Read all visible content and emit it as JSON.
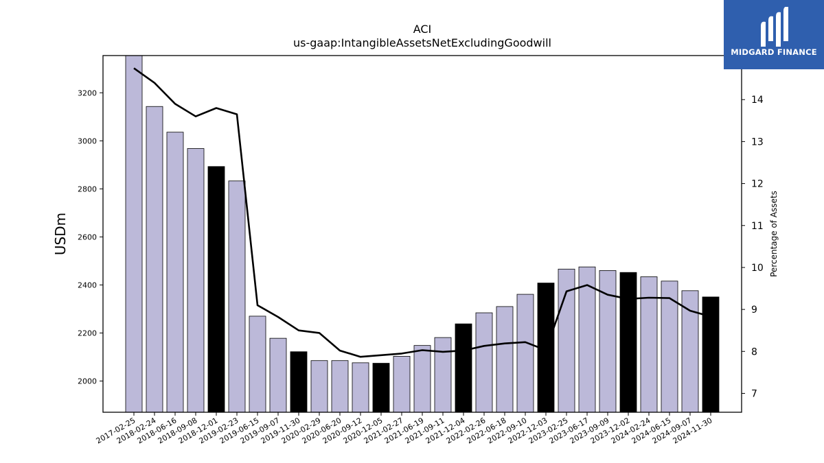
{
  "chart_data": {
    "type": "bar",
    "title": "ACI",
    "subtitle": "us-gaap:IntangibleAssetsNetExcludingGoodwill",
    "ylabel": "USDm",
    "y2label": "Percentage of Assets",
    "categories": [
      "2017-02-25",
      "2018-02-24",
      "2018-06-16",
      "2018-09-08",
      "2018-12-01",
      "2019-02-23",
      "2019-06-15",
      "2019-09-07",
      "2019-11-30",
      "2020-02-29",
      "2020-06-20",
      "2020-09-12",
      "2020-12-05",
      "2021-02-27",
      "2021-06-19",
      "2021-09-11",
      "2021-12-04",
      "2022-02-26",
      "2022-06-18",
      "2022-09-10",
      "2022-12-03",
      "2023-02-25",
      "2023-06-17",
      "2023-09-09",
      "2023-12-02",
      "2024-02-24",
      "2024-06-15",
      "2024-09-07",
      "2024-11-30"
    ],
    "series": [
      {
        "kind": "bar",
        "values": [
          3355,
          3143,
          3036,
          2968,
          2893,
          2833,
          2270,
          2178,
          2122,
          2085,
          2085,
          2076,
          2074,
          2103,
          2148,
          2181,
          2238,
          2284,
          2310,
          2361,
          2408,
          2466,
          2475,
          2460,
          2452,
          2434,
          2416,
          2376,
          2350
        ],
        "highlighted": [
          false,
          false,
          false,
          false,
          true,
          false,
          false,
          false,
          true,
          false,
          false,
          false,
          true,
          false,
          false,
          false,
          true,
          false,
          false,
          false,
          true,
          false,
          false,
          false,
          true,
          false,
          false,
          false,
          true
        ]
      },
      {
        "kind": "line",
        "axis": "right",
        "values": [
          14.75,
          14.4,
          13.9,
          13.6,
          13.8,
          13.65,
          9.1,
          8.82,
          8.5,
          8.44,
          8.02,
          7.87,
          7.91,
          7.95,
          8.03,
          7.99,
          8.02,
          8.13,
          8.19,
          8.22,
          8.03,
          9.43,
          9.58,
          9.35,
          9.25,
          9.28,
          9.27,
          8.97,
          8.83
        ]
      }
    ],
    "ylim": [
      1870,
      3355
    ],
    "y2lim": [
      6.55,
      15.05
    ],
    "yticks": [
      2000,
      2200,
      2400,
      2600,
      2800,
      3000,
      3200
    ],
    "y2ticks": [
      7,
      8,
      9,
      10,
      11,
      12,
      13,
      14
    ],
    "colors": {
      "bar": "#bcb9d9",
      "bar_highlight": "#000000",
      "line": "#000000"
    },
    "grid": false,
    "legend": "none"
  },
  "logo": {
    "text": "MIDGARD FINANCE",
    "background": "#2f5fae"
  }
}
